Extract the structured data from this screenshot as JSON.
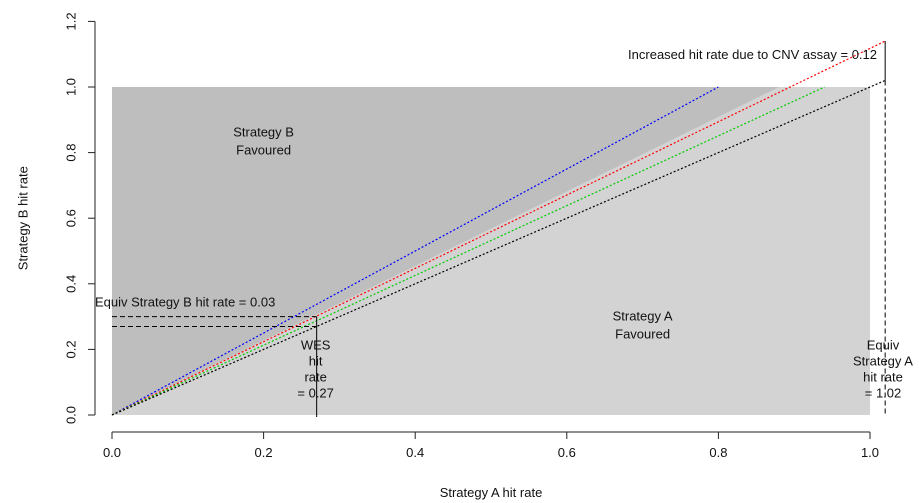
{
  "chart_data": {
    "type": "line",
    "xlabel": "Strategy A hit rate",
    "ylabel": "Strategy B hit rate",
    "xlim": [
      0.0,
      1.02
    ],
    "ylim": [
      0.0,
      1.2
    ],
    "xticks": [
      "0.0",
      "0.2",
      "0.4",
      "0.6",
      "0.8",
      "1.0"
    ],
    "yticks": [
      "0.0",
      "0.2",
      "0.4",
      "0.6",
      "0.8",
      "1.0",
      "1.2"
    ],
    "grid": false,
    "regions": [
      {
        "label_lines": [
          "Strategy B",
          "Favoured"
        ],
        "color": "#bebebe"
      },
      {
        "label_lines": [
          "Strategy A",
          "Favoured"
        ],
        "color": "#d3d3d3"
      }
    ],
    "series": [
      {
        "color": "#0000ff",
        "x": [
          0,
          0.8
        ],
        "y": [
          0,
          1.0
        ]
      },
      {
        "color": "#ff0000",
        "x": [
          0,
          1.02
        ],
        "y": [
          0,
          1.14
        ]
      },
      {
        "color": "#00cc00",
        "x": [
          0,
          0.94
        ],
        "y": [
          0,
          1.0
        ]
      },
      {
        "color": "#000000",
        "x": [
          0,
          1.02
        ],
        "y": [
          0,
          1.02
        ]
      }
    ],
    "annotations": {
      "equiv_b": {
        "text": "Equiv Strategy B hit rate = 0.03",
        "y_low": 0.27,
        "y_high": 0.3
      },
      "wes": {
        "lines": [
          "WES",
          "hit",
          "rate",
          "= 0.27"
        ],
        "x": 0.27
      },
      "increase": {
        "text": "Increased hit rate due to CNV assay = 0.12",
        "x": 1.02,
        "y_low": 1.02,
        "y_high": 1.14
      },
      "equiv_a": {
        "lines": [
          "Equiv",
          "Strategy A",
          "hit rate",
          "= 1.02"
        ],
        "x": 1.02
      }
    }
  }
}
